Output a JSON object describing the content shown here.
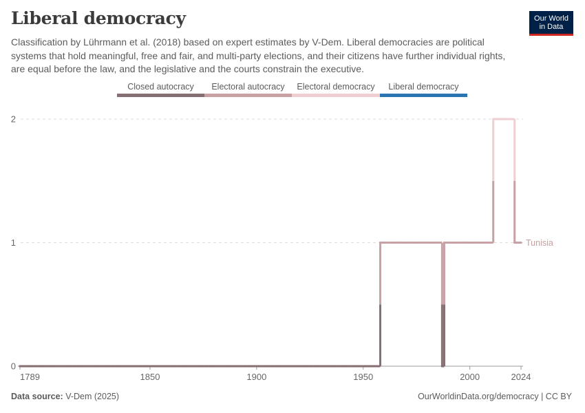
{
  "header": {
    "title": "Liberal democracy",
    "subtitle": "Classification by Lührmann et al. (2018) based on expert estimates by V-Dem. Liberal democracies are political systems that hold meaningful, free and fair, and multi-party elections, and their citizens have further individual rights, are equal before the law, and the legislative and the courts constrain the executive."
  },
  "logo": {
    "line1": "Our World",
    "line2": "in Data"
  },
  "legend": [
    {
      "label": "Closed autocracy",
      "color": "#866f72"
    },
    {
      "label": "Electoral autocracy",
      "color": "#c9a1a4"
    },
    {
      "label": "Electoral democracy",
      "color": "#efcfd2"
    },
    {
      "label": "Liberal democracy",
      "color": "#2b75b4"
    }
  ],
  "footer": {
    "source_label": "Data source:",
    "source_value": "V-Dem (2025)",
    "url": "OurWorldinData.org/democracy | CC BY"
  },
  "chart_data": {
    "type": "line",
    "title": "Liberal democracy",
    "xlabel": "",
    "ylabel": "",
    "xlim": [
      1789,
      2024
    ],
    "ylim": [
      0,
      2
    ],
    "x_ticks": [
      1789,
      1850,
      1900,
      1950,
      2000,
      2024
    ],
    "y_ticks": [
      0,
      1,
      2
    ],
    "grid": "horizontal dashed",
    "series": [
      {
        "name": "Tunisia",
        "segments": [
          {
            "from": 1789,
            "to": 1957,
            "value": 0
          },
          {
            "from": 1958,
            "to": 1986,
            "value": 1
          },
          {
            "from": 1987,
            "to": 1987,
            "value": 0
          },
          {
            "from": 1988,
            "to": 2010,
            "value": 1
          },
          {
            "from": 2011,
            "to": 2020,
            "value": 2
          },
          {
            "from": 2021,
            "to": 2024,
            "value": 1
          }
        ]
      }
    ],
    "value_colors": {
      "0": "#866f72",
      "1": "#c9a1a4",
      "2": "#efcfd2",
      "3": "#2b75b4"
    },
    "series_label_color": "#c59ea1"
  }
}
